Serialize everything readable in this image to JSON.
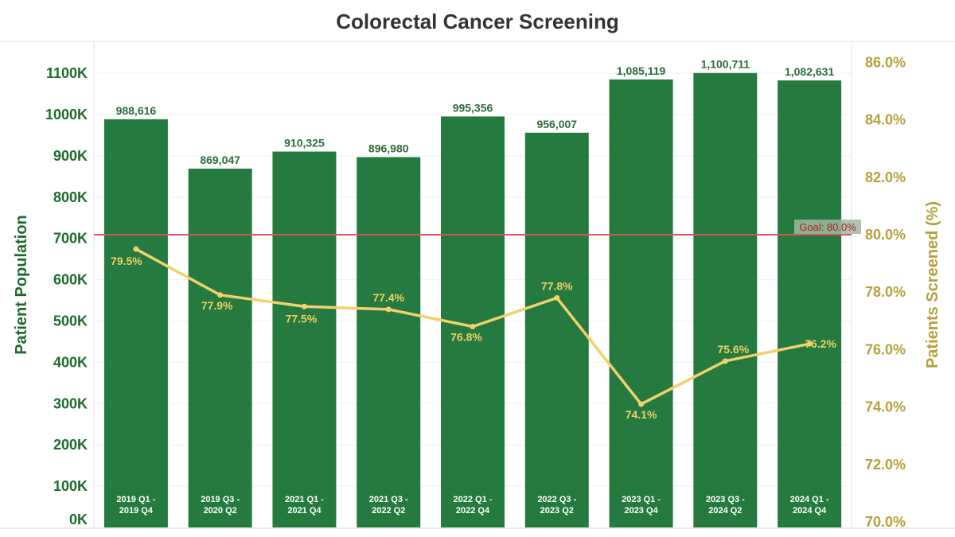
{
  "chart_data": {
    "type": "bar",
    "title": "Colorectal Cancer Screening",
    "ylabel": "Patient Population",
    "y2label": "Patients Screened (%)",
    "categories": [
      [
        "2019 Q1 -",
        "2019 Q4"
      ],
      [
        "2019 Q3 -",
        "2020 Q2"
      ],
      [
        "2021 Q1 -",
        "2021 Q4"
      ],
      [
        "2021 Q3 -",
        "2022 Q2"
      ],
      [
        "2022 Q1 -",
        "2022 Q4"
      ],
      [
        "2022 Q3 -",
        "2023 Q2"
      ],
      [
        "2023 Q1 -",
        "2023 Q4"
      ],
      [
        "2023 Q3 -",
        "2024 Q2"
      ],
      [
        "2024 Q1 -",
        "2024 Q4"
      ]
    ],
    "series": [
      {
        "name": "Patient Population",
        "type": "bar",
        "axis": "left",
        "color": "#257a40",
        "values": [
          988616,
          869047,
          910325,
          896980,
          995356,
          956007,
          1085119,
          1100711,
          1082631
        ],
        "labels": [
          "988,616",
          "869,047",
          "910,325",
          "896,980",
          "995,356",
          "956,007",
          "1,085,119",
          "1,100,711",
          "1,082,631"
        ]
      },
      {
        "name": "Patients Screened (%)",
        "type": "line",
        "axis": "right",
        "color": "#f2d06b",
        "values": [
          79.5,
          77.9,
          77.5,
          77.4,
          76.8,
          77.8,
          74.1,
          75.6,
          76.2
        ],
        "labels": [
          "79.5%",
          "77.9%",
          "77.5%",
          "77.4%",
          "76.8%",
          "77.8%",
          "74.1%",
          "75.6%",
          "76.2%"
        ]
      }
    ],
    "ylim": [
      0,
      1150000
    ],
    "y_ticks": [
      0,
      100000,
      200000,
      300000,
      400000,
      500000,
      600000,
      700000,
      800000,
      900000,
      1000000,
      1100000
    ],
    "y_tick_labels": [
      "0K",
      "100K",
      "200K",
      "300K",
      "400K",
      "500K",
      "600K",
      "700K",
      "800K",
      "900K",
      "1000K",
      "1100K"
    ],
    "y2lim": [
      70,
      86.6
    ],
    "y2_ticks": [
      70,
      72,
      74,
      76,
      78,
      80,
      82,
      84,
      86
    ],
    "y2_tick_labels": [
      "70.0%",
      "72.0%",
      "74.0%",
      "76.0%",
      "78.0%",
      "80.0%",
      "82.0%",
      "84.0%",
      "86.0%"
    ],
    "goal": {
      "value": 80.0,
      "label": "Goal: 80.0%",
      "color": "#d9545a"
    },
    "grid": true,
    "colors": {
      "left_axis": "#1e6b2e",
      "right_axis": "#b5a03a",
      "bar_label": "#2b6b3a",
      "pct_label": "#f0d060"
    }
  }
}
